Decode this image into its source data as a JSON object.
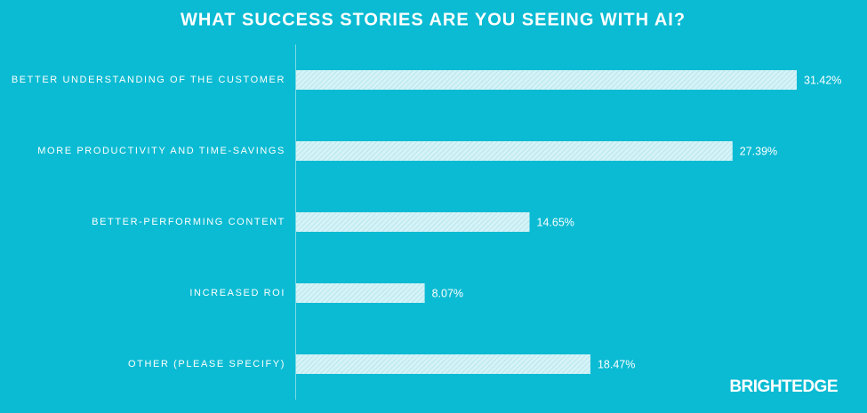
{
  "chart_data": {
    "type": "bar",
    "orientation": "horizontal",
    "title": "WHAT SUCCESS STORIES ARE YOU SEEING WITH AI?",
    "categories": [
      "BETTER UNDERSTANDING OF THE CUSTOMER",
      "MORE PRODUCTIVITY AND TIME-SAVINGS",
      "BETTER-PERFORMING CONTENT",
      "INCREASED ROI",
      "OTHER (PLEASE SPECIFY)"
    ],
    "values": [
      31.42,
      27.39,
      14.65,
      8.07,
      18.47
    ],
    "value_labels": [
      "31.42%",
      "27.39%",
      "14.65%",
      "8.07%",
      "18.47%"
    ],
    "color": "#d6f3f7",
    "brand": "BRIGHTEDGE"
  }
}
